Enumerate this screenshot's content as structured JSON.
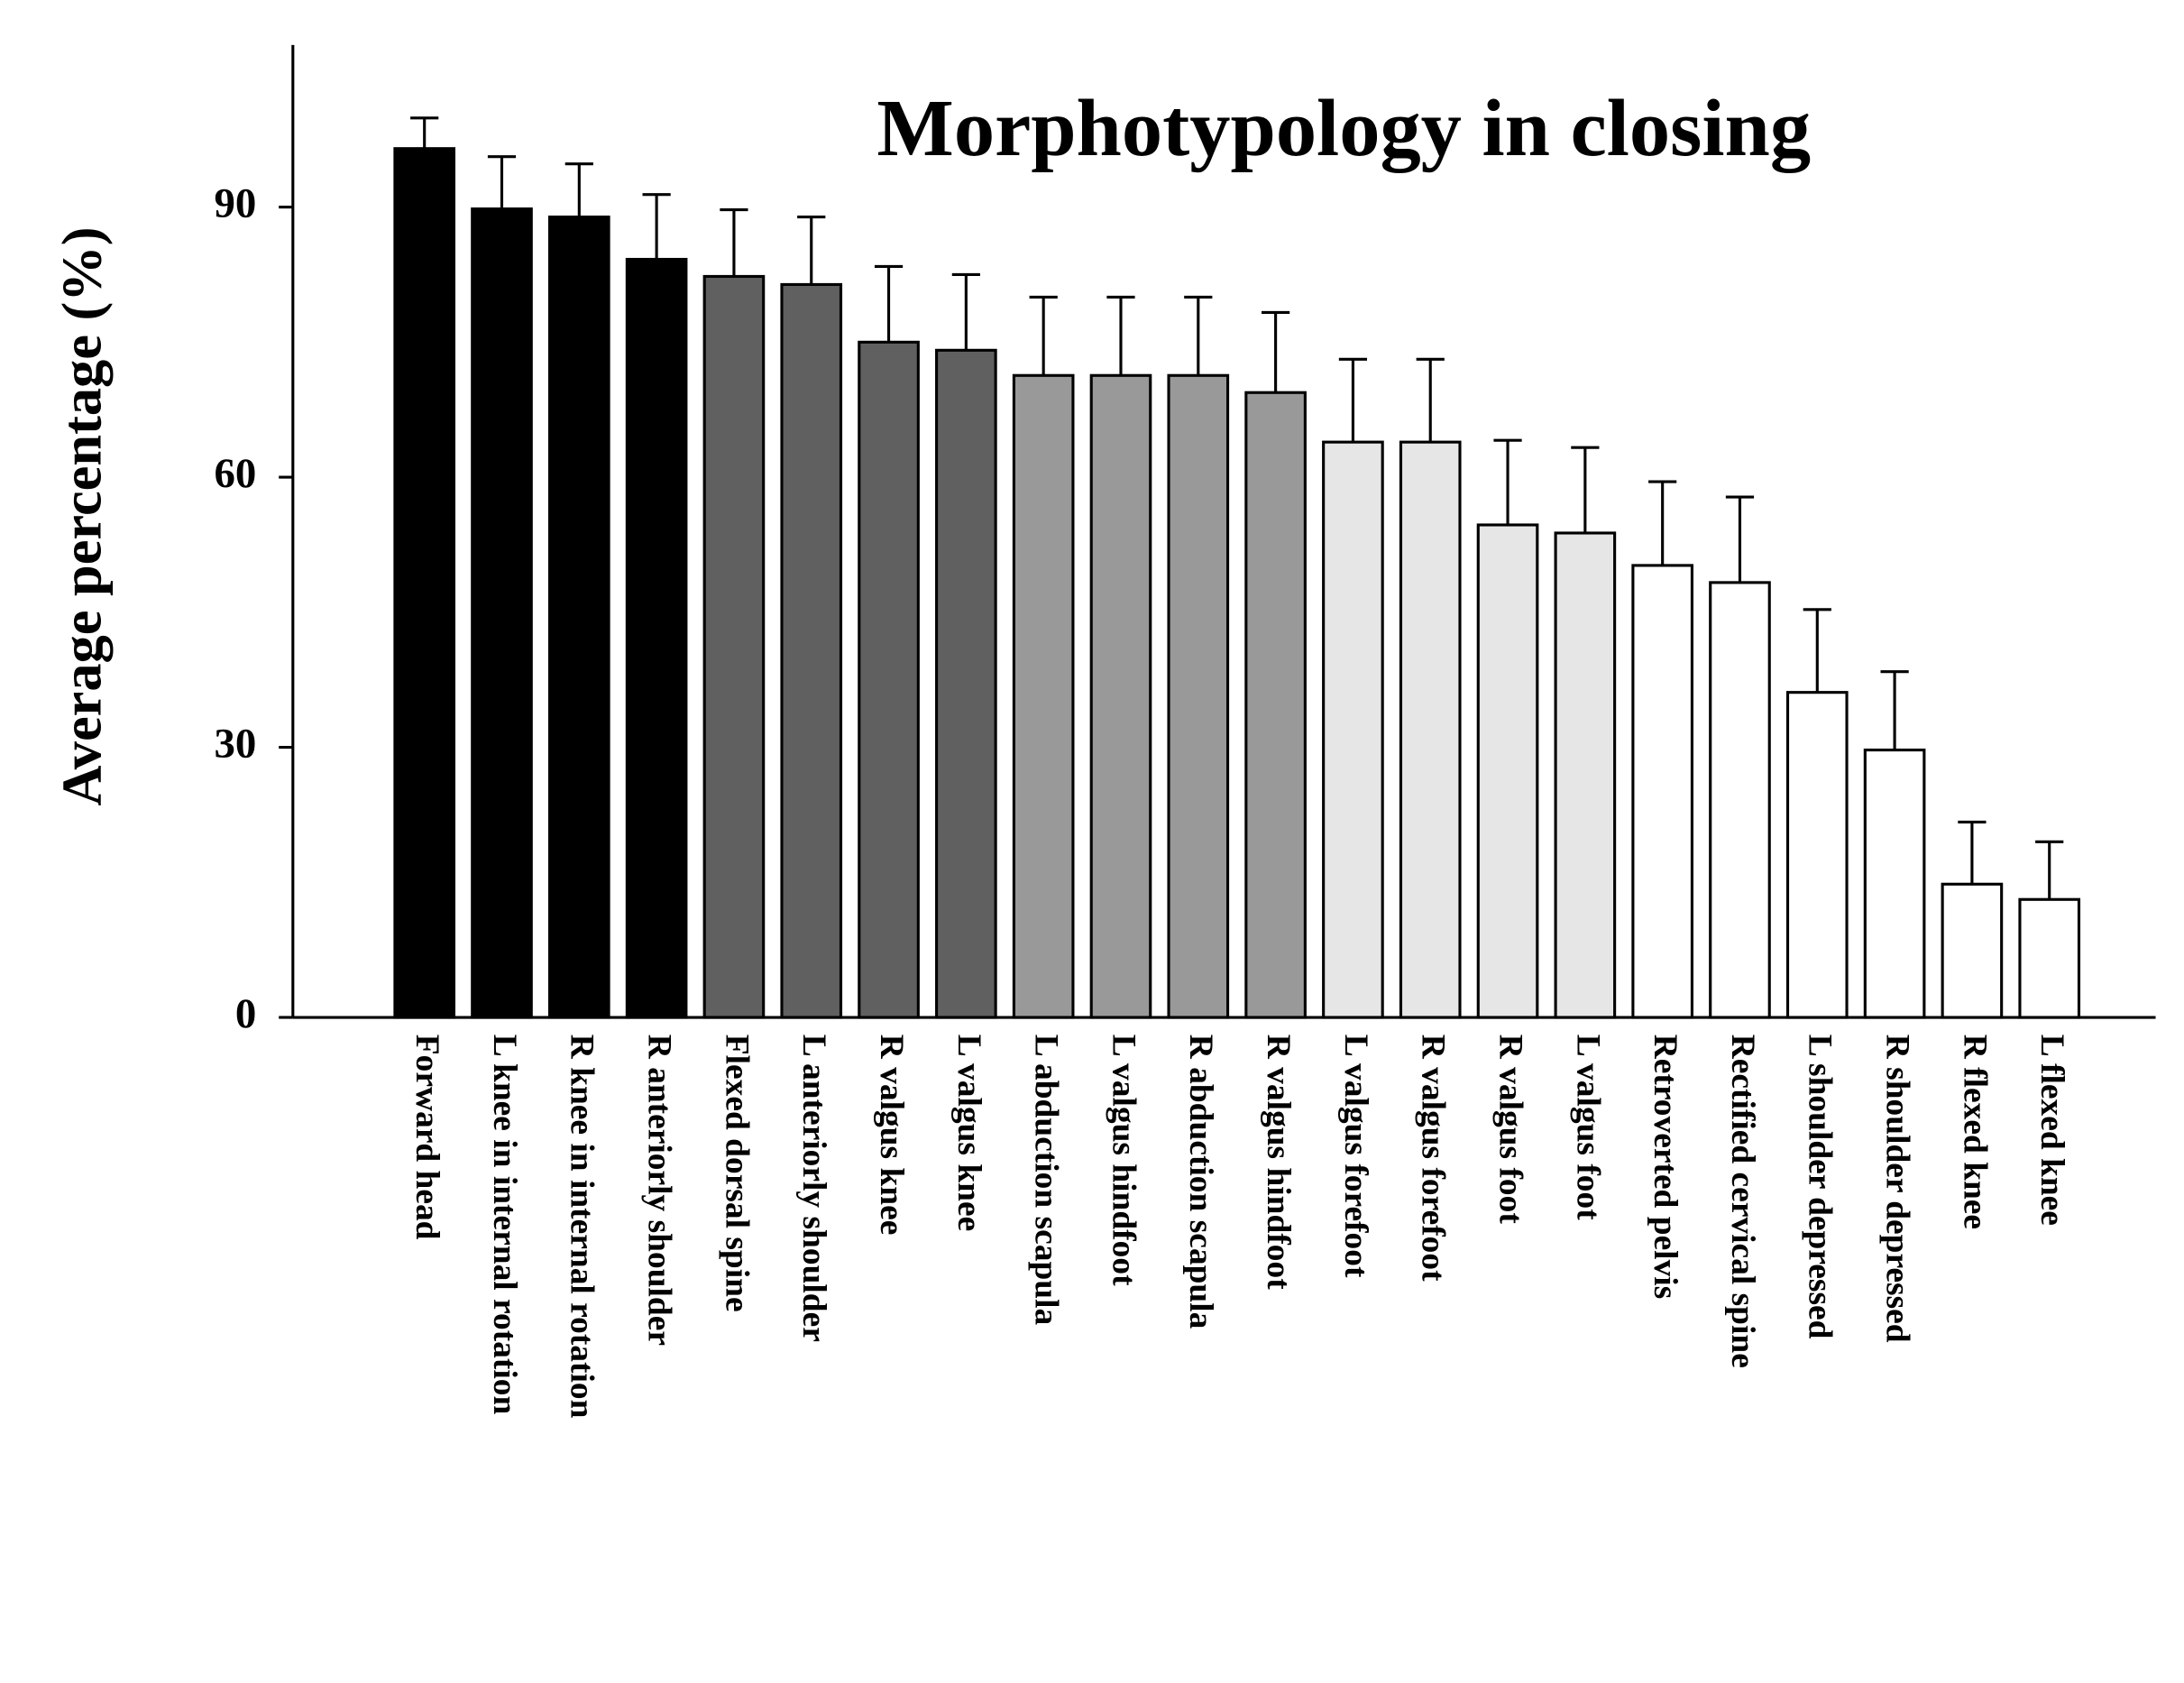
{
  "chart_data": {
    "type": "bar",
    "title": "Morphotypology in closing",
    "y_label": "Average percentage (%)",
    "categories": [
      "Forward head",
      "L knee in internal rotation",
      "R knee in internal rotation",
      "R anteriorly shoulder",
      "Flexed dorsal spine",
      "L anteriorly shoulder",
      "R valgus knee",
      "L valgus knee",
      "L abduction scapula",
      "L valgus hindfoot",
      "R abduction scapula",
      "R valgus hindfoot",
      "L valgus forefoot",
      "R valgus forefoot",
      "R valgus foot",
      "L valgus foot",
      "Retroverted pelvis",
      "Rectified cervical spine",
      "L shoulder depressed",
      "R shoulder depressed",
      "R flexed knee",
      "L flexed knee"
    ],
    "values": [
      96.5,
      89.8,
      88.9,
      84.2,
      82.3,
      81.4,
      75.0,
      74.1,
      71.3,
      71.3,
      71.3,
      69.4,
      63.9,
      63.9,
      54.7,
      53.8,
      50.2,
      48.3,
      36.1,
      29.7,
      14.8,
      13.1
    ],
    "errors": [
      3.4,
      5.8,
      5.9,
      7.2,
      7.4,
      7.5,
      8.4,
      8.4,
      8.7,
      8.7,
      8.7,
      8.9,
      9.2,
      9.2,
      9.4,
      9.5,
      9.3,
      9.5,
      9.2,
      8.7,
      6.9,
      6.4
    ],
    "colors": [
      "#000000",
      "#000000",
      "#000000",
      "#000000",
      "#606060",
      "#606060",
      "#606060",
      "#606060",
      "#999999",
      "#999999",
      "#999999",
      "#999999",
      "#e6e6e6",
      "#e6e6e6",
      "#e6e6e6",
      "#e6e6e6",
      "#ffffff",
      "#ffffff",
      "#ffffff",
      "#ffffff",
      "#ffffff",
      "#ffffff"
    ],
    "ylim": [
      0,
      108
    ],
    "yticks": [
      0,
      30,
      60,
      90
    ],
    "grid": false
  }
}
